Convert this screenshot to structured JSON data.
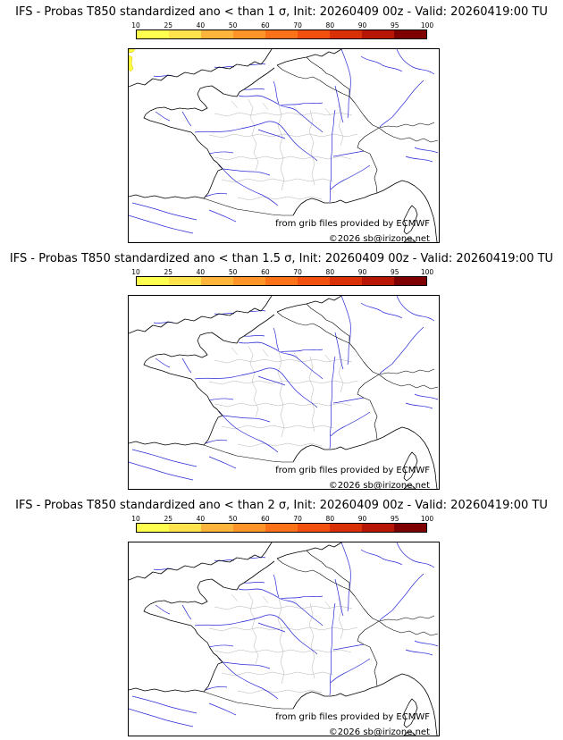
{
  "page": {
    "background": "#ffffff"
  },
  "colorbar": {
    "ticks": [
      "10",
      "25",
      "40",
      "50",
      "60",
      "70",
      "80",
      "90",
      "95",
      "100"
    ],
    "colors": [
      "#ffff50",
      "#ffe34c",
      "#ffb43c",
      "#ff9428",
      "#fb7218",
      "#f1500e",
      "#d93008",
      "#b81604",
      "#7e0000"
    ]
  },
  "panels": [
    {
      "title": "IFS - Probas T850  standardized ano < than 1 σ, Init: 20260409 00z - Valid: 20260419:00 TU",
      "credit": "from grib files provided by ECMWF",
      "copyright": "©2026 sb@irizone.net",
      "has_patch": true
    },
    {
      "title": "IFS - Probas T850  standardized ano < than 1.5 σ, Init: 20260409 00z - Valid: 20260419:00 TU",
      "credit": "from grib files provided by ECMWF",
      "copyright": "©2026 sb@irizone.net",
      "has_patch": false
    },
    {
      "title": "IFS - Probas T850  standardized ano < than 2 σ, Init: 20260409 00z - Valid: 20260419:00 TU",
      "credit": "from grib files provided by ECMWF",
      "copyright": "©2026 sb@irizone.net",
      "has_patch": false
    }
  ]
}
